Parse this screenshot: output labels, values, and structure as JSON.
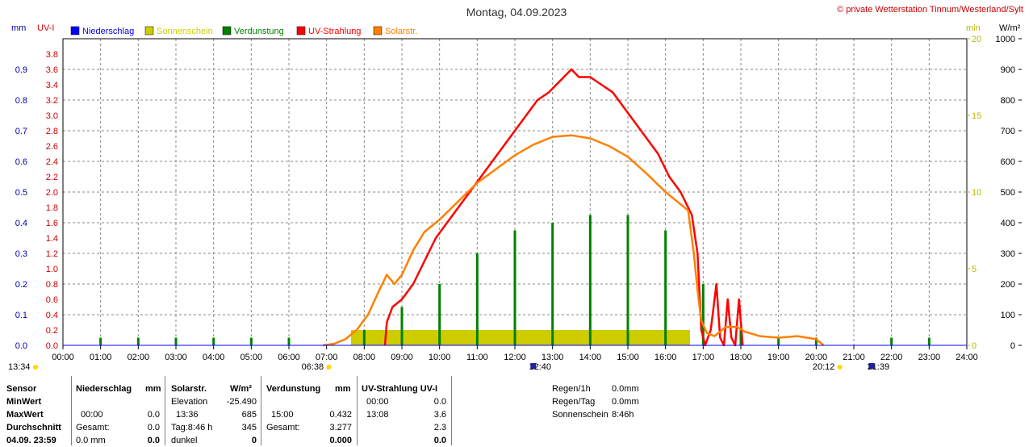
{
  "title": "Montag, 04.09.2023",
  "copyright": "© private Wetterstation Tinnum/Westerland/Sylt",
  "unit_labels": {
    "left_mm": "mm",
    "left_uv": "UV-I",
    "right_min": "min",
    "right_wm2": "W/m²"
  },
  "legend": [
    {
      "label": "Niederschlag",
      "color": "#0000ff"
    },
    {
      "label": "Sonnenschein",
      "color": "#cccc00"
    },
    {
      "label": "Verdunstung",
      "color": "#008000"
    },
    {
      "label": "UV-Strahlung",
      "color": "#ff0000"
    },
    {
      "label": "Solarstr.",
      "color": "#ff8000"
    }
  ],
  "chart_data": {
    "type": "line",
    "title": "Montag, 04.09.2023",
    "x_unit": "hour",
    "xlim": [
      0,
      24
    ],
    "x_ticks": [
      "00:00",
      "01:00",
      "02:00",
      "03:00",
      "04:00",
      "05:00",
      "06:00",
      "07:00",
      "08:00",
      "09:00",
      "10:00",
      "11:00",
      "12:00",
      "13:00",
      "14:00",
      "15:00",
      "16:00",
      "17:00",
      "18:00",
      "19:00",
      "20:00",
      "21:00",
      "22:00",
      "23:00",
      "24:00"
    ],
    "axes": {
      "mm": {
        "range": [
          0,
          1.0
        ],
        "ticks": [
          "0.0",
          "0.1",
          "0.2",
          "0.3",
          "0.4",
          "0.5",
          "0.6",
          "0.7",
          "0.8",
          "0.9"
        ],
        "color": "#0000aa"
      },
      "uv": {
        "range": [
          0,
          4.0
        ],
        "ticks": [
          "0.0",
          "0.2",
          "0.4",
          "0.6",
          "0.8",
          "1.0",
          "1.2",
          "1.4",
          "1.6",
          "1.8",
          "2.0",
          "2.2",
          "2.4",
          "2.6",
          "2.8",
          "3.0",
          "3.2",
          "3.4",
          "3.6",
          "3.8"
        ],
        "color": "#cc0000"
      },
      "min": {
        "range": [
          0,
          20
        ],
        "ticks": [
          "0",
          "5",
          "10",
          "15",
          "20"
        ],
        "color": "#b8b800"
      },
      "wm2": {
        "range": [
          0,
          1000
        ],
        "ticks": [
          "0",
          "100",
          "200",
          "300",
          "400",
          "500",
          "600",
          "700",
          "800",
          "900",
          "1000"
        ],
        "color": "#000000"
      }
    },
    "series": [
      {
        "name": "UV-Strahlung",
        "axis": "uv",
        "color": "#ff0000",
        "points": [
          [
            8.55,
            0
          ],
          [
            8.6,
            0.3
          ],
          [
            8.75,
            0.5
          ],
          [
            9.0,
            0.6
          ],
          [
            9.3,
            0.8
          ],
          [
            9.6,
            1.1
          ],
          [
            9.9,
            1.4
          ],
          [
            10.2,
            1.6
          ],
          [
            10.5,
            1.8
          ],
          [
            10.8,
            2.0
          ],
          [
            11.1,
            2.2
          ],
          [
            11.4,
            2.4
          ],
          [
            11.7,
            2.6
          ],
          [
            12.0,
            2.8
          ],
          [
            12.3,
            3.0
          ],
          [
            12.6,
            3.2
          ],
          [
            12.9,
            3.3
          ],
          [
            13.1,
            3.4
          ],
          [
            13.3,
            3.5
          ],
          [
            13.5,
            3.6
          ],
          [
            13.7,
            3.5
          ],
          [
            14.0,
            3.5
          ],
          [
            14.3,
            3.4
          ],
          [
            14.6,
            3.3
          ],
          [
            14.9,
            3.1
          ],
          [
            15.2,
            2.9
          ],
          [
            15.5,
            2.7
          ],
          [
            15.8,
            2.5
          ],
          [
            16.1,
            2.2
          ],
          [
            16.4,
            2.0
          ],
          [
            16.7,
            1.7
          ],
          [
            16.85,
            1.2
          ],
          [
            16.95,
            0.2
          ],
          [
            17.05,
            0.0
          ],
          [
            17.2,
            0.2
          ],
          [
            17.35,
            0.8
          ],
          [
            17.45,
            0.1
          ],
          [
            17.55,
            0.0
          ],
          [
            17.65,
            0.6
          ],
          [
            17.75,
            0.1
          ],
          [
            17.85,
            0.0
          ],
          [
            17.95,
            0.6
          ],
          [
            18.05,
            0.0
          ]
        ]
      },
      {
        "name": "Solarstr.",
        "axis": "wm2",
        "color": "#ff8000",
        "points": [
          [
            6.9,
            0
          ],
          [
            7.2,
            5
          ],
          [
            7.5,
            20
          ],
          [
            7.8,
            50
          ],
          [
            8.1,
            100
          ],
          [
            8.4,
            180
          ],
          [
            8.6,
            230
          ],
          [
            8.8,
            200
          ],
          [
            9.0,
            230
          ],
          [
            9.3,
            310
          ],
          [
            9.6,
            370
          ],
          [
            10.0,
            410
          ],
          [
            10.5,
            470
          ],
          [
            11.0,
            530
          ],
          [
            11.5,
            575
          ],
          [
            12.0,
            620
          ],
          [
            12.5,
            655
          ],
          [
            13.0,
            680
          ],
          [
            13.5,
            685
          ],
          [
            14.0,
            675
          ],
          [
            14.5,
            650
          ],
          [
            15.0,
            615
          ],
          [
            15.5,
            560
          ],
          [
            16.0,
            500
          ],
          [
            16.4,
            460
          ],
          [
            16.6,
            440
          ],
          [
            16.75,
            300
          ],
          [
            16.85,
            180
          ],
          [
            16.95,
            80
          ],
          [
            17.1,
            40
          ],
          [
            17.3,
            30
          ],
          [
            17.6,
            60
          ],
          [
            17.9,
            60
          ],
          [
            18.1,
            45
          ],
          [
            18.5,
            30
          ],
          [
            19.0,
            25
          ],
          [
            19.5,
            30
          ],
          [
            20.0,
            20
          ],
          [
            20.2,
            0
          ]
        ]
      }
    ],
    "bars": [
      {
        "name": "Verdunstung",
        "axis": "uv",
        "color": "#008000",
        "points": [
          [
            1.0,
            0.1
          ],
          [
            2.0,
            0.1
          ],
          [
            3.0,
            0.1
          ],
          [
            4.0,
            0.1
          ],
          [
            5.0,
            0.1
          ],
          [
            6.0,
            0.1
          ],
          [
            8.0,
            0.2
          ],
          [
            9.0,
            0.5
          ],
          [
            10.0,
            0.8
          ],
          [
            11.0,
            1.2
          ],
          [
            12.0,
            1.5
          ],
          [
            13.0,
            1.6
          ],
          [
            14.0,
            1.7
          ],
          [
            15.0,
            1.7
          ],
          [
            16.0,
            1.5
          ],
          [
            17.0,
            0.8
          ],
          [
            18.0,
            0.2
          ],
          [
            19.0,
            0.1
          ],
          [
            20.0,
            0.1
          ],
          [
            22.0,
            0.1
          ],
          [
            23.0,
            0.1
          ]
        ]
      }
    ],
    "sunshine": {
      "name": "Sonnenschein",
      "axis": "min",
      "color": "#cccc00",
      "from": 7.65,
      "to": 16.65,
      "value": 1.0
    },
    "markers": [
      {
        "x": 6.63,
        "label": "06:38",
        "symbol": "sunrise"
      },
      {
        "x": 12.67,
        "label": "12:40",
        "symbol": "moon"
      },
      {
        "x": 20.2,
        "label": "20:12",
        "symbol": "sunset"
      },
      {
        "x": 21.65,
        "label": "21:39",
        "symbol": "moon"
      }
    ],
    "left_marker_label": "13:34"
  },
  "table": {
    "row_labels": [
      "Sensor",
      "MinWert",
      "MaxWert",
      "Durchschnitt",
      "04.09. 23:59"
    ],
    "niederschlag": {
      "header": "Niederschlag",
      "unit": "mm",
      "max_time": "00:00",
      "max_value": "0.0",
      "gesamt_label": "Gesamt:",
      "gesamt_value": "0.0",
      "last_value": "0.0 mm",
      "last_bold": "0.0"
    },
    "solar": {
      "header": "Solarstr.",
      "unit": "W/m²",
      "elev_label": "Elevation",
      "elev_value": "-25.490",
      "max_time": "13:36",
      "max_value": "685",
      "tag_label": "Tag:8:46 h",
      "tag_value": "345",
      "dunkel_label": "dunkel",
      "dunkel_value": "0"
    },
    "verdunstung": {
      "header": "Verdunstung",
      "unit": "mm",
      "max_time": "15:00",
      "max_value": "0.432",
      "gesamt_label": "Gesamt:",
      "gesamt_value": "3.277",
      "last_value": "0.000"
    },
    "uv": {
      "header": "UV-Strahlung UV-I",
      "min_time": "00:00",
      "min_value": "0.0",
      "max_time": "13:08",
      "max_value": "3.6",
      "avg_value": "2.3",
      "last_value": "0.0"
    },
    "extra": [
      {
        "label": "Regen/1h",
        "value": "0.0mm"
      },
      {
        "label": "Regen/Tag",
        "value": "0.0mm"
      },
      {
        "label": "Sonnenschein",
        "value": "8:46h"
      }
    ]
  }
}
